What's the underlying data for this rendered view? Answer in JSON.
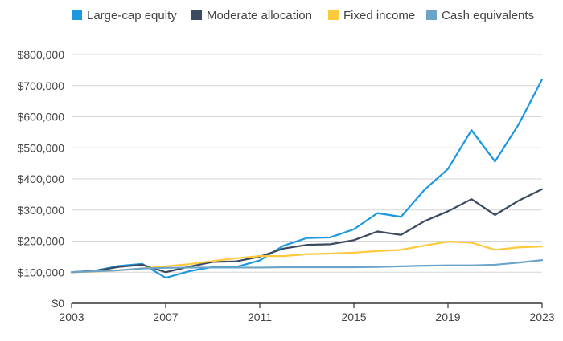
{
  "chart_data": {
    "type": "line",
    "title": "",
    "xlabel": "",
    "ylabel": "",
    "x": [
      2003,
      2004,
      2005,
      2006,
      2007,
      2008,
      2009,
      2010,
      2011,
      2012,
      2013,
      2014,
      2015,
      2016,
      2017,
      2018,
      2019,
      2020,
      2021,
      2022,
      2023
    ],
    "x_ticks": [
      "2003",
      "2007",
      "2011",
      "2015",
      "2019",
      "2023"
    ],
    "x_tick_values": [
      2003,
      2007,
      2011,
      2015,
      2019,
      2023
    ],
    "xlim": [
      2003,
      2023
    ],
    "ylim": [
      0,
      800000
    ],
    "y_tick_values": [
      0,
      100000,
      200000,
      300000,
      400000,
      500000,
      600000,
      700000,
      800000
    ],
    "y_ticks": [
      "$0",
      "$100,000",
      "$200,000",
      "$300,000",
      "$400,000",
      "$500,000",
      "$600,000",
      "$700,000",
      "$800,000"
    ],
    "grid": "horizontal",
    "legend_position": "top",
    "series": [
      {
        "name": "Large-cap equity",
        "color": "#1b98e0",
        "values": [
          100000,
          105000,
          120000,
          127000,
          82000,
          103000,
          117000,
          117000,
          138000,
          185000,
          210000,
          212000,
          238000,
          290000,
          278000,
          365000,
          432000,
          557000,
          456000,
          575000,
          720000
        ]
      },
      {
        "name": "Moderate allocation",
        "color": "#3b4a5e",
        "values": [
          100000,
          104000,
          117000,
          124000,
          100000,
          118000,
          133000,
          135000,
          150000,
          176000,
          188000,
          190000,
          203000,
          231000,
          220000,
          264000,
          296000,
          335000,
          284000,
          330000,
          367000
        ]
      },
      {
        "name": "Fixed income",
        "color": "#ffc93c",
        "values": [
          100000,
          102000,
          106000,
          112000,
          119000,
          126000,
          136000,
          145000,
          152000,
          152000,
          158000,
          160000,
          163000,
          168000,
          172000,
          186000,
          198000,
          195000,
          172000,
          180000,
          183000
        ]
      },
      {
        "name": "Cash equivalents",
        "color": "#6ba4c8",
        "values": [
          100000,
          103000,
          106000,
          112000,
          114000,
          115000,
          115000,
          115000,
          115000,
          116000,
          116000,
          116000,
          116000,
          117000,
          119000,
          121000,
          122000,
          122000,
          124000,
          131000,
          139000
        ]
      }
    ]
  }
}
